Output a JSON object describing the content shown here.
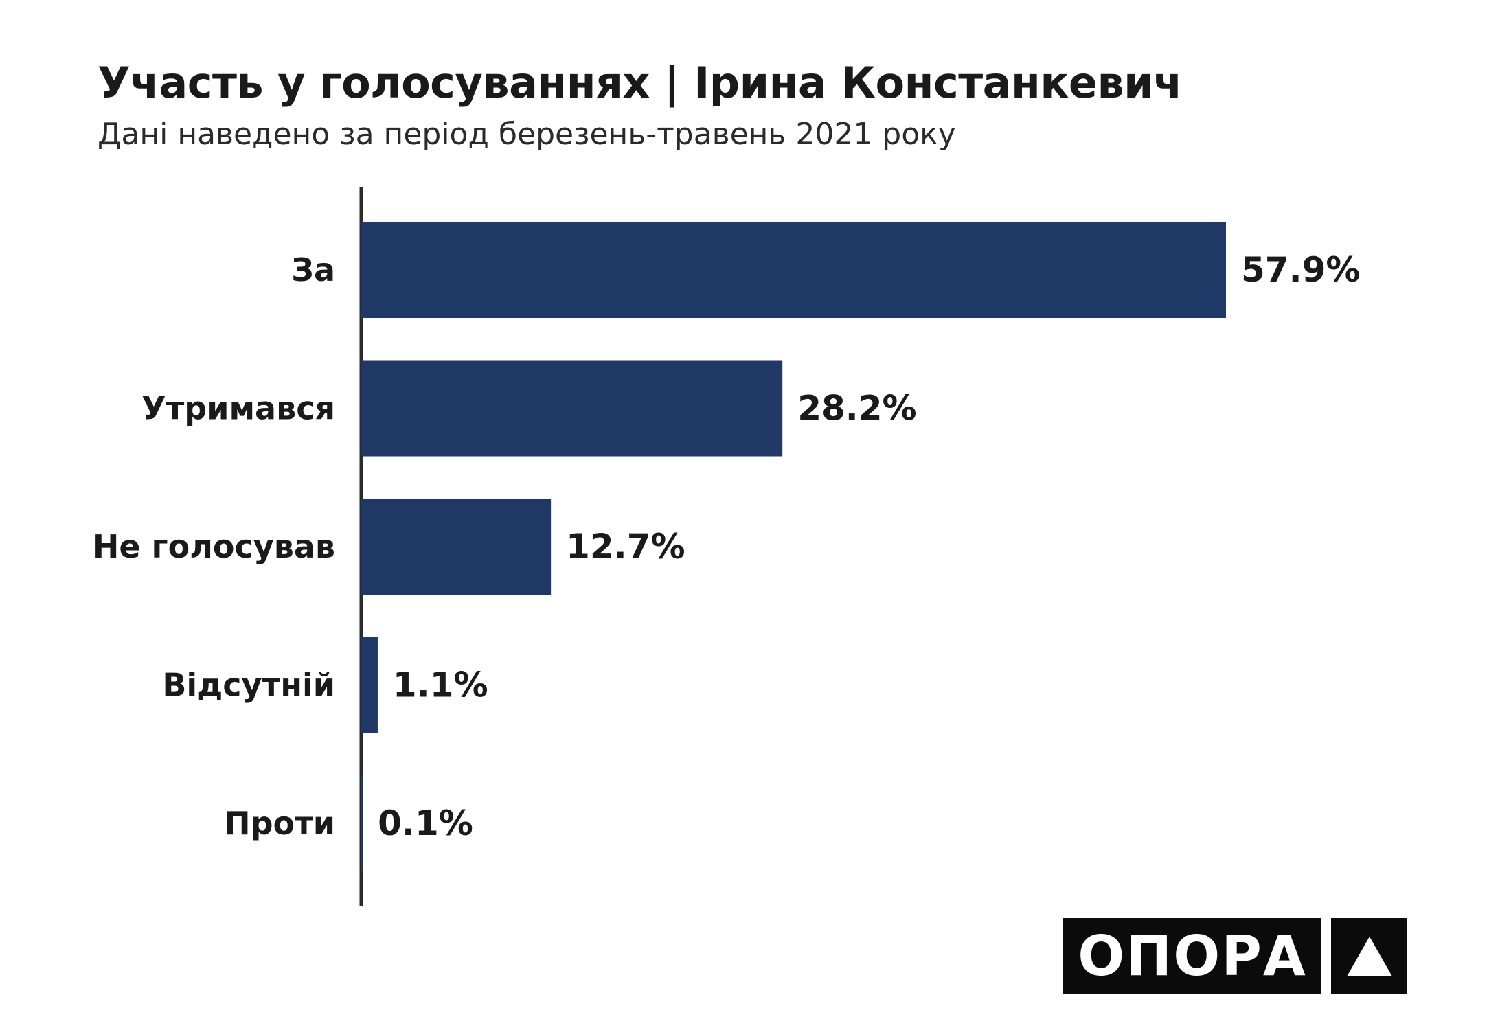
{
  "header": {
    "title": "Участь у голосуваннях | Ірина Констанкевич",
    "subtitle": "Дані наведено за період березень-травень 2021 року"
  },
  "logo": {
    "text": "ОПОРА",
    "mark": "triangle-icon"
  },
  "colors": {
    "bar": "#1f3866",
    "axis": "#2b2b2b"
  },
  "chart_data": {
    "type": "bar",
    "orientation": "horizontal",
    "categories": [
      "За",
      "Утримався",
      "Не голосував",
      "Відсутній",
      "Проти"
    ],
    "values": [
      57.9,
      28.2,
      12.7,
      1.1,
      0.1
    ],
    "value_labels": [
      "57.9%",
      "28.2%",
      "12.7%",
      "1.1%",
      "0.1%"
    ],
    "unit": "%",
    "xlim": [
      0,
      60
    ],
    "grid": false,
    "legend": "none"
  }
}
